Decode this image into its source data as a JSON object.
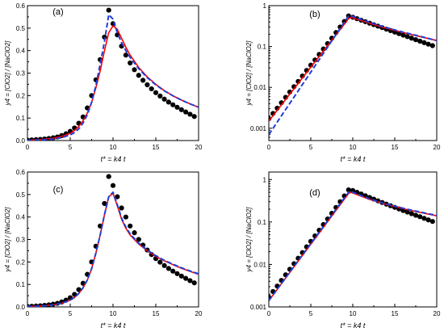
{
  "colors": {
    "dots": "#000000",
    "red_line": "#ff0000",
    "blue_dashed": "#1f3fd8",
    "axis": "#000000",
    "background": "#ffffff"
  },
  "chart_data": [
    {
      "panel_label": "(a)",
      "type": "line",
      "yscale": "linear",
      "xlabel": "t* = k4 t",
      "ylabel": "y4 = [ClO2] / [NaClO2]",
      "xlim": [
        0,
        20
      ],
      "ylim": [
        0,
        0.6
      ],
      "xticks": [
        0,
        5,
        10,
        15,
        20
      ],
      "xtick_labels": [
        "0",
        "5",
        "10",
        "15",
        "20"
      ],
      "yticks": [
        0.0,
        0.1,
        0.2,
        0.3,
        0.4,
        0.5,
        0.6
      ],
      "ytick_labels": [
        "0.0",
        "0.1",
        "0.2",
        "0.3",
        "0.4",
        "0.5",
        "0.6"
      ],
      "grid": false,
      "series": [
        {
          "style": "dots",
          "x": [
            0,
            0.5,
            1,
            1.5,
            2,
            2.5,
            3,
            3.5,
            4,
            4.5,
            5,
            5.5,
            6,
            6.5,
            7,
            7.5,
            8,
            8.5,
            9,
            9.5,
            10,
            10.5,
            11,
            11.5,
            12,
            12.5,
            13,
            13.5,
            14,
            14.5,
            15,
            15.5,
            16,
            16.5,
            17,
            17.5,
            18,
            18.5,
            19,
            19.5
          ],
          "y": [
            0.002,
            0.003,
            0.004,
            0.005,
            0.007,
            0.009,
            0.012,
            0.016,
            0.022,
            0.03,
            0.041,
            0.056,
            0.077,
            0.105,
            0.145,
            0.2,
            0.27,
            0.36,
            0.46,
            0.58,
            0.52,
            0.47,
            0.42,
            0.38,
            0.345,
            0.315,
            0.29,
            0.268,
            0.248,
            0.23,
            0.213,
            0.198,
            0.184,
            0.171,
            0.159,
            0.148,
            0.137,
            0.127,
            0.117,
            0.107
          ]
        },
        {
          "style": "solid-red",
          "x": [
            0,
            1,
            2,
            3,
            4,
            5,
            5.5,
            6,
            6.5,
            7,
            7.5,
            8,
            8.5,
            9,
            9.5,
            10,
            10.5,
            11,
            11.5,
            12,
            13,
            14,
            15,
            16,
            17,
            18,
            19,
            20
          ],
          "y": [
            0.002,
            0.003,
            0.006,
            0.01,
            0.018,
            0.032,
            0.045,
            0.063,
            0.088,
            0.122,
            0.17,
            0.235,
            0.31,
            0.4,
            0.48,
            0.51,
            0.495,
            0.455,
            0.415,
            0.38,
            0.325,
            0.283,
            0.25,
            0.222,
            0.199,
            0.18,
            0.163,
            0.148
          ]
        },
        {
          "style": "dashed-blue",
          "x": [
            0,
            1,
            2,
            3,
            4,
            5,
            5.5,
            6,
            6.5,
            7,
            7.5,
            8,
            8.5,
            9,
            9.5,
            10,
            10.5,
            11,
            11.5,
            12,
            13,
            14,
            15,
            16,
            17,
            18,
            19,
            20
          ],
          "y": [
            0.001,
            0.002,
            0.004,
            0.007,
            0.013,
            0.025,
            0.036,
            0.052,
            0.078,
            0.115,
            0.17,
            0.245,
            0.34,
            0.44,
            0.56,
            0.54,
            0.48,
            0.435,
            0.4,
            0.37,
            0.32,
            0.28,
            0.248,
            0.221,
            0.199,
            0.18,
            0.163,
            0.148
          ]
        }
      ]
    },
    {
      "panel_label": "(b)",
      "type": "line",
      "yscale": "log",
      "xlabel": "t* = k4 t",
      "ylabel": "y4 = [ClO2] / [NaClO2]",
      "xlim": [
        0,
        20
      ],
      "ylim": [
        0.0005,
        1
      ],
      "xticks": [
        0,
        5,
        10,
        15,
        20
      ],
      "xtick_labels": [
        "0",
        "5",
        "10",
        "15",
        "20"
      ],
      "yticks": [
        0.001,
        0.01,
        0.1,
        1
      ],
      "ytick_labels": [
        "0.001",
        "0.01",
        "0.1",
        "1"
      ],
      "grid": false,
      "series": [
        {
          "style": "dots",
          "x": [
            0,
            0.5,
            1,
            1.5,
            2,
            2.5,
            3,
            3.5,
            4,
            4.5,
            5,
            5.5,
            6,
            6.5,
            7,
            7.5,
            8,
            8.5,
            9,
            9.5,
            10,
            10.5,
            11,
            11.5,
            12,
            12.5,
            13,
            13.5,
            14,
            14.5,
            15,
            15.5,
            16,
            16.5,
            17,
            17.5,
            18,
            18.5,
            19,
            19.5
          ],
          "y": [
            0.0017,
            0.0023,
            0.0031,
            0.0042,
            0.0057,
            0.0077,
            0.0104,
            0.014,
            0.019,
            0.026,
            0.035,
            0.047,
            0.064,
            0.087,
            0.118,
            0.16,
            0.22,
            0.3,
            0.41,
            0.56,
            0.52,
            0.48,
            0.44,
            0.405,
            0.372,
            0.342,
            0.315,
            0.29,
            0.266,
            0.245,
            0.225,
            0.207,
            0.19,
            0.175,
            0.16,
            0.147,
            0.135,
            0.124,
            0.114,
            0.105
          ]
        },
        {
          "style": "solid-red",
          "x": [
            0,
            9.5,
            9.8,
            12,
            14,
            16,
            18,
            20
          ],
          "y": [
            0.0015,
            0.48,
            0.52,
            0.37,
            0.28,
            0.22,
            0.175,
            0.14
          ]
        },
        {
          "style": "dashed-blue",
          "x": [
            0,
            9.5,
            9.8,
            12,
            14,
            16,
            18,
            20
          ],
          "y": [
            0.0007,
            0.56,
            0.56,
            0.39,
            0.29,
            0.225,
            0.178,
            0.14
          ]
        }
      ]
    },
    {
      "panel_label": "(c)",
      "type": "line",
      "yscale": "linear",
      "xlabel": "t* = k4 t",
      "ylabel": "y4 = [ClO2] / [NaClO2]",
      "xlim": [
        0,
        20
      ],
      "ylim": [
        0,
        0.6
      ],
      "xticks": [
        0,
        5,
        10,
        15,
        20
      ],
      "xtick_labels": [
        "0",
        "5",
        "10",
        "15",
        "20"
      ],
      "yticks": [
        0.0,
        0.1,
        0.2,
        0.3,
        0.4,
        0.5,
        0.6
      ],
      "ytick_labels": [
        "0.0",
        "0.1",
        "0.2",
        "0.3",
        "0.4",
        "0.5",
        "0.6"
      ],
      "grid": false,
      "series": [
        {
          "style": "dots",
          "x": [
            0,
            0.5,
            1,
            1.5,
            2,
            2.5,
            3,
            3.5,
            4,
            4.5,
            5,
            5.5,
            6,
            6.5,
            7,
            7.5,
            8,
            8.5,
            9,
            9.5,
            10,
            10.5,
            11,
            11.5,
            12,
            12.5,
            13,
            13.5,
            14,
            14.5,
            15,
            15.5,
            16,
            16.5,
            17,
            17.5,
            18,
            18.5,
            19,
            19.5
          ],
          "y": [
            0.002,
            0.003,
            0.004,
            0.005,
            0.007,
            0.009,
            0.012,
            0.016,
            0.022,
            0.03,
            0.041,
            0.056,
            0.077,
            0.105,
            0.145,
            0.2,
            0.27,
            0.36,
            0.46,
            0.58,
            0.54,
            0.49,
            0.44,
            0.4,
            0.36,
            0.33,
            0.3,
            0.275,
            0.253,
            0.233,
            0.215,
            0.199,
            0.184,
            0.171,
            0.159,
            0.148,
            0.137,
            0.127,
            0.117,
            0.107
          ]
        },
        {
          "style": "solid-red",
          "x": [
            0,
            1,
            2,
            3,
            4,
            5,
            5.5,
            6,
            6.5,
            7,
            7.5,
            8,
            8.5,
            9,
            9.5,
            10,
            10.5,
            11,
            11.5,
            12,
            13,
            14,
            15,
            16,
            17,
            18,
            19,
            20
          ],
          "y": [
            0.002,
            0.003,
            0.005,
            0.009,
            0.016,
            0.03,
            0.042,
            0.06,
            0.085,
            0.12,
            0.17,
            0.24,
            0.32,
            0.41,
            0.49,
            0.505,
            0.45,
            0.39,
            0.35,
            0.32,
            0.28,
            0.25,
            0.225,
            0.205,
            0.188,
            0.172,
            0.158,
            0.145
          ]
        },
        {
          "style": "dashed-blue",
          "x": [
            0,
            1,
            2,
            3,
            4,
            5,
            5.5,
            6,
            6.5,
            7,
            7.5,
            8,
            8.5,
            9,
            9.5,
            10,
            10.5,
            11,
            11.5,
            12,
            13,
            14,
            15,
            16,
            17,
            18,
            19,
            20
          ],
          "y": [
            0.002,
            0.003,
            0.005,
            0.009,
            0.016,
            0.03,
            0.042,
            0.06,
            0.085,
            0.12,
            0.17,
            0.24,
            0.32,
            0.41,
            0.49,
            0.51,
            0.455,
            0.395,
            0.355,
            0.325,
            0.283,
            0.253,
            0.228,
            0.207,
            0.19,
            0.174,
            0.16,
            0.147
          ]
        }
      ]
    },
    {
      "panel_label": "(d)",
      "type": "line",
      "yscale": "log",
      "xlabel": "t* = k4 t",
      "ylabel": "y4 = [ClO2] / [NaClO2]",
      "xlim": [
        0,
        20
      ],
      "ylim": [
        0.001,
        1.5
      ],
      "xticks": [
        0,
        5,
        10,
        15,
        20
      ],
      "xtick_labels": [
        "0",
        "5",
        "10",
        "15",
        "20"
      ],
      "yticks": [
        0.001,
        0.01,
        0.1,
        1
      ],
      "ytick_labels": [
        "0.001",
        "0.01",
        "0.1",
        "1"
      ],
      "grid": false,
      "series": [
        {
          "style": "dots",
          "x": [
            0,
            0.5,
            1,
            1.5,
            2,
            2.5,
            3,
            3.5,
            4,
            4.5,
            5,
            5.5,
            6,
            6.5,
            7,
            7.5,
            8,
            8.5,
            9,
            9.5,
            10,
            10.5,
            11,
            11.5,
            12,
            12.5,
            13,
            13.5,
            14,
            14.5,
            15,
            15.5,
            16,
            16.5,
            17,
            17.5,
            18,
            18.5,
            19,
            19.5
          ],
          "y": [
            0.0017,
            0.0023,
            0.0031,
            0.0042,
            0.0057,
            0.0077,
            0.0104,
            0.014,
            0.019,
            0.026,
            0.035,
            0.047,
            0.064,
            0.087,
            0.118,
            0.16,
            0.22,
            0.3,
            0.41,
            0.57,
            0.55,
            0.5,
            0.455,
            0.415,
            0.378,
            0.345,
            0.315,
            0.288,
            0.263,
            0.241,
            0.221,
            0.203,
            0.186,
            0.171,
            0.157,
            0.144,
            0.133,
            0.122,
            0.112,
            0.103
          ]
        },
        {
          "style": "solid-red",
          "x": [
            0,
            9.5,
            9.8,
            12,
            14,
            16,
            18,
            20
          ],
          "y": [
            0.0014,
            0.47,
            0.5,
            0.34,
            0.26,
            0.205,
            0.168,
            0.14
          ]
        },
        {
          "style": "dashed-blue",
          "x": [
            0,
            9.5,
            9.8,
            12,
            14,
            16,
            18,
            20
          ],
          "y": [
            0.0014,
            0.5,
            0.52,
            0.35,
            0.265,
            0.21,
            0.172,
            0.143
          ]
        }
      ]
    }
  ]
}
